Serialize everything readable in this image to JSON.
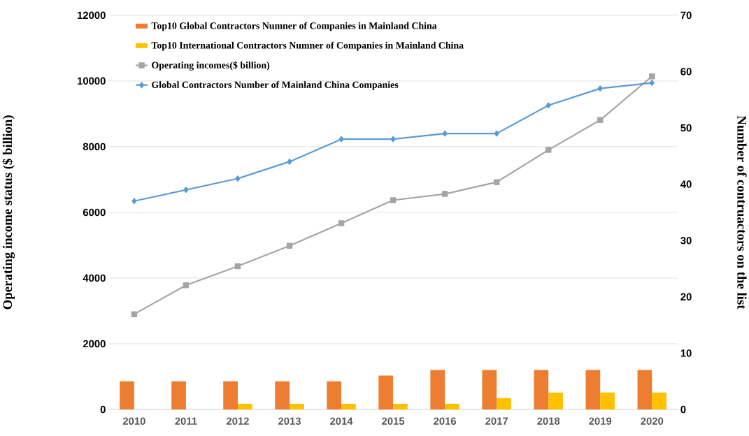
{
  "chart_data": {
    "type": "bar",
    "categories": [
      "2010",
      "2011",
      "2012",
      "2013",
      "2014",
      "2015",
      "2016",
      "2017",
      "2018",
      "2019",
      "2020"
    ],
    "ylabel": "Operating income status ($ billion)",
    "y2label": "Number of contruactors on the list",
    "ylim": [
      0,
      12000
    ],
    "yticks": [
      0,
      2000,
      4000,
      6000,
      8000,
      10000,
      12000
    ],
    "y2lim": [
      0,
      70
    ],
    "y2ticks": [
      0,
      10,
      20,
      30,
      40,
      50,
      60,
      70
    ],
    "grid": "y",
    "legend": "top left",
    "series": [
      {
        "name": "Top10 Global Contractors Numner of Companies in Mainland China",
        "axis": "y2",
        "color": "#ed7d31",
        "values": [
          5,
          5,
          5,
          5,
          5,
          6,
          7,
          7,
          7,
          7,
          7
        ]
      },
      {
        "name": "Top10 International Contractors Numner of Companies in Mainland China",
        "axis": "y2",
        "color": "#ffc000",
        "values": [
          0,
          0,
          1,
          1,
          1,
          1,
          1,
          2,
          3,
          3,
          3
        ]
      },
      {
        "name": "Operating incomes($ billion)",
        "type": "line",
        "axis": "y",
        "marker": "square",
        "color": "#a5a5a5",
        "values": [
          2900,
          3780,
          4360,
          4980,
          5670,
          6370,
          6560,
          6920,
          7900,
          8810,
          10140
        ]
      },
      {
        "name": "Global Contractors Number of Mainland China Companies",
        "type": "line",
        "axis": "y2",
        "marker": "diamond",
        "color": "#5b9bd5",
        "values": [
          37,
          39,
          41,
          44,
          48,
          48,
          49,
          49,
          54,
          57,
          58
        ]
      }
    ]
  }
}
